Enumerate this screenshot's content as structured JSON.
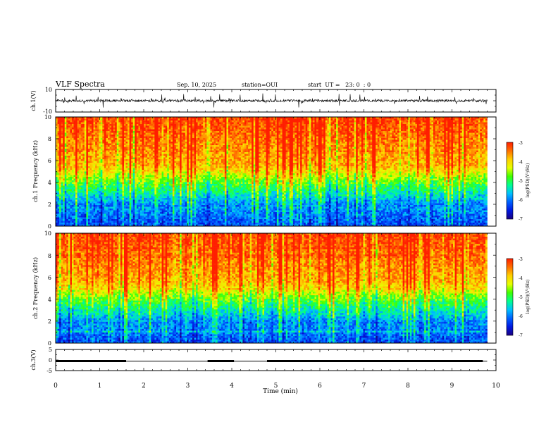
{
  "header": {
    "title": "VLF Spectra",
    "date": "Sep. 10, 2025",
    "station": "station=OUI",
    "start": "start  UT =   23: 0  : 0"
  },
  "colors": {
    "spectrogram_stops": [
      "#1a0080",
      "#0018e0",
      "#0060ff",
      "#00c0ff",
      "#00ff90",
      "#40ff00",
      "#e6ff00",
      "#ffd000",
      "#ff7000",
      "#ff1e00"
    ]
  },
  "chart_data": [
    {
      "type": "line",
      "panel": "ch1-waveform",
      "ylabel": "ch.1(V)",
      "ylim": [
        -10,
        10
      ],
      "yticks": [
        "10",
        "-10"
      ],
      "xlim": [
        0,
        10
      ],
      "description_values": {
        "baseline": 0,
        "typical_amplitude": 3,
        "peak_amplitude": 8
      }
    },
    {
      "type": "heatmap",
      "panel": "ch1-spectrogram",
      "ylabel": "ch.1 Frequency  (kHz)",
      "ylim": [
        0,
        10
      ],
      "yticks": [
        "0",
        "2",
        "4",
        "6",
        "8",
        "10"
      ],
      "xlim": [
        0,
        10
      ],
      "data_end_min": 9.8,
      "colorbar": {
        "label": "log(PSD)(V²/Hz)",
        "range": [
          -7,
          -3
        ],
        "ticks": [
          "-3",
          "-4",
          "-5",
          "-6",
          "-7"
        ]
      }
    },
    {
      "type": "heatmap",
      "panel": "ch2-spectrogram",
      "ylabel": "ch.2 Frequency  (kHz)",
      "ylim": [
        0,
        10
      ],
      "yticks": [
        "0",
        "2",
        "4",
        "6",
        "8",
        "10"
      ],
      "xlim": [
        0,
        10
      ],
      "data_end_min": 9.8,
      "colorbar": {
        "label": "log(PSD)(V²/Hz)",
        "range": [
          -7,
          -3
        ],
        "ticks": [
          "-3",
          "-4",
          "-5",
          "-6",
          "-7"
        ]
      }
    },
    {
      "type": "line",
      "panel": "ch3-waveform",
      "ylabel": "ch.3(V)",
      "ylim": [
        -5,
        5
      ],
      "yticks": [
        "5",
        "0",
        "-5"
      ],
      "xlim": [
        0,
        10
      ],
      "level": -0.5,
      "thick_segments": [
        [
          0,
          1.6
        ],
        [
          3.45,
          4.05
        ],
        [
          4.8,
          9.7
        ]
      ]
    }
  ],
  "xaxis": {
    "label": "Time  (min)",
    "ticks": [
      "0",
      "1",
      "2",
      "3",
      "4",
      "5",
      "6",
      "7",
      "8",
      "9",
      "10"
    ]
  }
}
